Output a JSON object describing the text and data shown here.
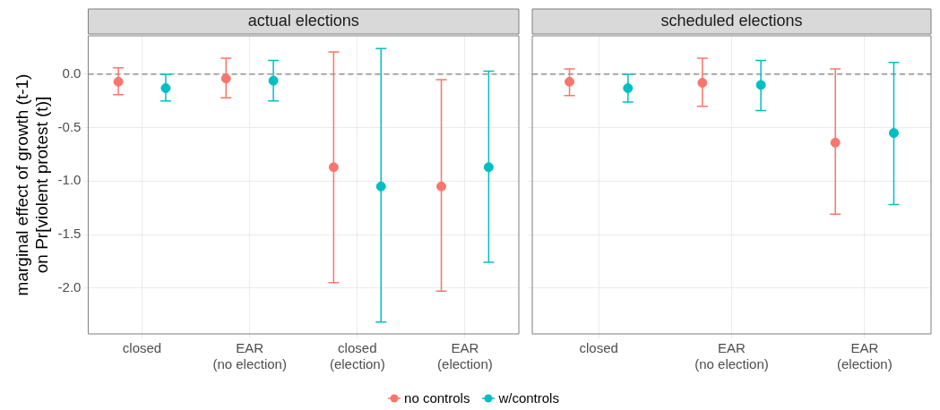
{
  "chart_data": [
    {
      "type": "scatter",
      "title": "actual elections",
      "ylabel": "marginal effect of growth (t-1)\non Pr[violent protest (t)]",
      "categories": [
        "closed",
        "EAR\n(no election)",
        "closed\n(election)",
        "EAR\n(election)"
      ],
      "series": [
        {
          "name": "no controls",
          "color": "#f8766d",
          "values": [
            -0.07,
            -0.04,
            -0.87,
            -1.05
          ],
          "errors": [
            [
              -0.19,
              0.06
            ],
            [
              -0.22,
              0.15
            ],
            [
              -1.95,
              0.21
            ],
            [
              -2.03,
              -0.05
            ]
          ]
        },
        {
          "name": "w/controls",
          "color": "#00bfc4",
          "values": [
            -0.13,
            -0.06,
            -1.05,
            -0.87
          ],
          "errors": [
            [
              -0.25,
              0.0
            ],
            [
              -0.25,
              0.13
            ],
            [
              -2.32,
              0.24
            ],
            [
              -1.76,
              0.03
            ]
          ]
        }
      ],
      "ylim": [
        -2.43,
        0.36
      ],
      "yticks": [
        {
          "value": 0,
          "label": "0.0"
        },
        -0.5,
        {
          "value": -1,
          "label": "-1.0"
        },
        -1.5,
        {
          "value": -2,
          "label": "-2.0"
        }
      ],
      "ref_lines": [
        {
          "axis": "y",
          "value": 0,
          "color": "#808080",
          "line_style": "dashed"
        }
      ],
      "grid": true,
      "legend": "bottom",
      "marker": "circle"
    },
    {
      "type": "scatter",
      "title": "scheduled elections",
      "categories": [
        "closed",
        "EAR\n(no election)",
        "EAR\n(election)"
      ],
      "series": [
        {
          "name": "no controls",
          "color": "#f8766d",
          "values": [
            -0.07,
            -0.08,
            -0.64
          ],
          "errors": [
            [
              -0.2,
              0.05
            ],
            [
              -0.3,
              0.15
            ],
            [
              -1.31,
              0.05
            ]
          ]
        },
        {
          "name": "w/controls",
          "color": "#00bfc4",
          "values": [
            -0.13,
            -0.1,
            -0.55
          ],
          "errors": [
            [
              -0.26,
              0.0
            ],
            [
              -0.34,
              0.13
            ],
            [
              -1.22,
              0.11
            ]
          ]
        }
      ],
      "ylim": [
        -2.43,
        0.36
      ],
      "yticks": [
        {
          "value": 0,
          "label": null
        },
        {
          "value": -0.5,
          "label": null
        },
        {
          "value": -1,
          "label": null
        },
        {
          "value": -1.5,
          "label": null
        },
        {
          "value": -2,
          "label": null
        }
      ],
      "ref_lines": [
        {
          "axis": "y",
          "value": 0,
          "color": "#808080",
          "line_style": "dashed"
        }
      ],
      "grid": true,
      "tick_labels": "x",
      "marker": "circle"
    }
  ]
}
